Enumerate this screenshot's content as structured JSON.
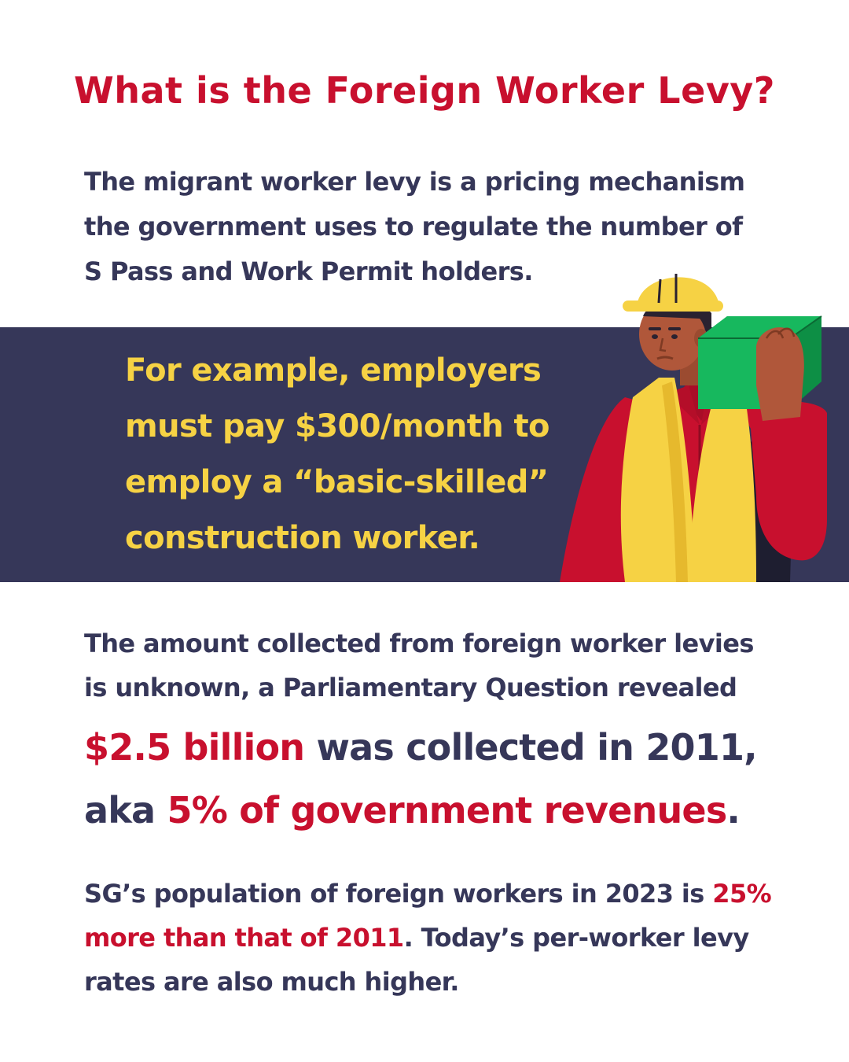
{
  "title": "What is the Foreign Worker Levy?",
  "intro": "The migrant worker levy is a pricing mechanism the government uses to regulate the number of S Pass and Work Permit holders.",
  "callout": "For example, employers must pay $300/month to employ a “basic-skilled” construction worker.",
  "illustration": {
    "icon": "construction-worker-icon",
    "colors": {
      "helmet": "#f6d244",
      "box": "#17b85e",
      "shirt": "#c8102e",
      "vest": "#f6d244",
      "skin": "#b0573a"
    }
  },
  "amount_intro": "The amount collected from foreign worker levies is unknown, a Parliamentary Question revealed",
  "amount_statement": {
    "amount": "$2.5 billion",
    "middle": " was collected in 2011, aka ",
    "share": "5% of government revenues",
    "end": "."
  },
  "population": {
    "start": "SG’s population of foreign workers in 2023 is ",
    "highlight": "25% more than that of 2011",
    "end": ". Today’s per-worker levy rates are also much higher."
  },
  "colors": {
    "accent_red": "#c8102e",
    "navy": "#363759",
    "yellow": "#f6d244",
    "background": "#ffffff"
  }
}
